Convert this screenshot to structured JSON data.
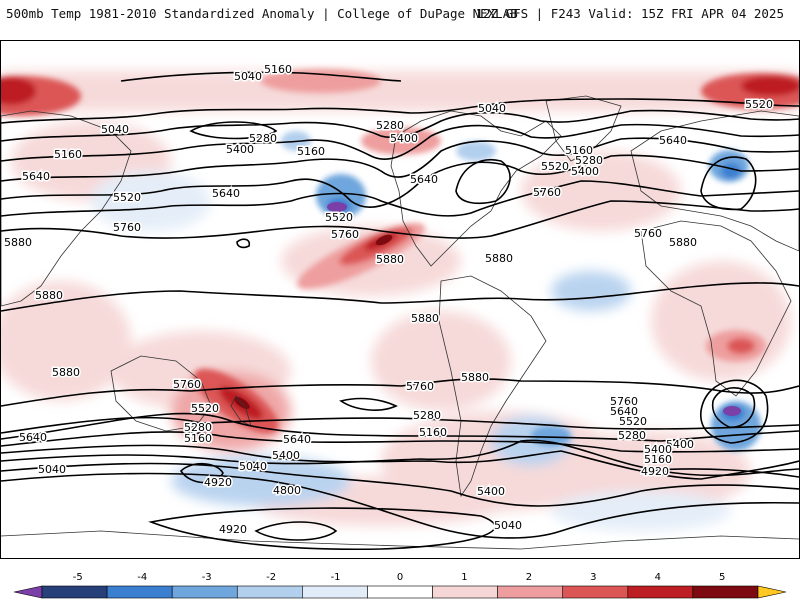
{
  "header": {
    "title_left": "500mb Temp 1981-2010 Standardized Anomaly | College of DuPage NEXLAB",
    "title_right": "12Z GFS | F243 Valid: 15Z FRI APR 04 2025"
  },
  "legend": {
    "tick_labels": [
      "-5",
      "-4",
      "-3",
      "-2",
      "-1",
      "0",
      "1",
      "2",
      "3",
      "4",
      "5"
    ],
    "colors": [
      "#7b3fa8",
      "#27407a",
      "#3b7fd0",
      "#6ea6dd",
      "#b2cfee",
      "#e2ecf8",
      "#ffffff",
      "#f6d6d6",
      "#ee9e9e",
      "#dc5656",
      "#bd1e24",
      "#7d0a10",
      "#ffc820"
    ]
  },
  "contour_labels": [
    {
      "text": "5160"
    },
    {
      "text": "5040"
    },
    {
      "text": "5040"
    },
    {
      "text": "5040"
    },
    {
      "text": "5520"
    },
    {
      "text": "5280"
    },
    {
      "text": "5400"
    },
    {
      "text": "5160"
    },
    {
      "text": "5160"
    },
    {
      "text": "5640"
    },
    {
      "text": "5520"
    },
    {
      "text": "5640"
    },
    {
      "text": "5760"
    },
    {
      "text": "5520"
    },
    {
      "text": "5760"
    },
    {
      "text": "5880"
    },
    {
      "text": "5280"
    },
    {
      "text": "5400"
    },
    {
      "text": "5640"
    },
    {
      "text": "5160"
    },
    {
      "text": "5280"
    },
    {
      "text": "5520"
    },
    {
      "text": "5400"
    },
    {
      "text": "5760"
    },
    {
      "text": "5640"
    },
    {
      "text": "5760"
    },
    {
      "text": "5880"
    },
    {
      "text": "5880"
    },
    {
      "text": "5880"
    },
    {
      "text": "5880"
    },
    {
      "text": "5880"
    },
    {
      "text": "5880"
    },
    {
      "text": "5880"
    },
    {
      "text": "5760"
    },
    {
      "text": "5760"
    },
    {
      "text": "5520"
    },
    {
      "text": "5280"
    },
    {
      "text": "5160"
    },
    {
      "text": "5640"
    },
    {
      "text": "5400"
    },
    {
      "text": "5280"
    },
    {
      "text": "5160"
    },
    {
      "text": "5640"
    },
    {
      "text": "5040"
    },
    {
      "text": "5040"
    },
    {
      "text": "5400"
    },
    {
      "text": "4920"
    },
    {
      "text": "4800"
    },
    {
      "text": "4920"
    },
    {
      "text": "5040"
    },
    {
      "text": "5760"
    },
    {
      "text": "5640"
    },
    {
      "text": "5520"
    },
    {
      "text": "5400"
    },
    {
      "text": "5280"
    },
    {
      "text": "5400"
    },
    {
      "text": "5160"
    },
    {
      "text": "4920"
    }
  ]
}
